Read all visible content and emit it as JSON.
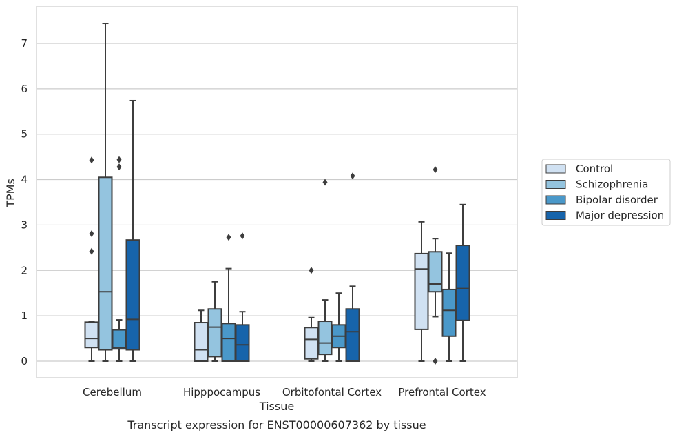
{
  "chart_data": {
    "type": "box",
    "title": "",
    "caption": "Transcript expression for ENST00000607362 by tissue",
    "xlabel": "Tissue",
    "ylabel": "TPMs",
    "ylim": [
      -0.35,
      7.8
    ],
    "yticks": [
      0,
      1,
      2,
      3,
      4,
      5,
      6,
      7
    ],
    "grid": "horizontal",
    "legend_position": "right",
    "categories": [
      "Cerebellum",
      "Hipppocampus",
      "Orbitofontal Cortex",
      "Prefrontal Cortex"
    ],
    "series": [
      {
        "name": "Control",
        "color": "#d0e1f2",
        "boxes": [
          {
            "min": 0.0,
            "q1": 0.3,
            "median": 0.5,
            "q3": 0.86,
            "max": 0.88,
            "outliers": [
              2.42,
              2.81,
              4.43
            ]
          },
          {
            "min": 0.0,
            "q1": 0.0,
            "median": 0.25,
            "q3": 0.85,
            "max": 1.12,
            "outliers": []
          },
          {
            "min": 0.0,
            "q1": 0.05,
            "median": 0.48,
            "q3": 0.74,
            "max": 0.96,
            "outliers": [
              2.0
            ]
          },
          {
            "min": 0.0,
            "q1": 0.7,
            "median": 2.03,
            "q3": 2.37,
            "max": 3.07,
            "outliers": []
          }
        ]
      },
      {
        "name": "Schizophrenia",
        "color": "#94c4df",
        "boxes": [
          {
            "min": 0.0,
            "q1": 0.25,
            "median": 1.53,
            "q3": 4.05,
            "max": 7.44,
            "outliers": []
          },
          {
            "min": 0.0,
            "q1": 0.1,
            "median": 0.75,
            "q3": 1.15,
            "max": 1.75,
            "outliers": []
          },
          {
            "min": 0.0,
            "q1": 0.15,
            "median": 0.4,
            "q3": 0.88,
            "max": 1.35,
            "outliers": [
              3.94
            ]
          },
          {
            "min": 0.98,
            "q1": 1.53,
            "median": 1.7,
            "q3": 2.41,
            "max": 2.7,
            "outliers": [
              0.0,
              4.22
            ]
          }
        ]
      },
      {
        "name": "Bipolar disorder",
        "color": "#4a98c9",
        "boxes": [
          {
            "min": 0.0,
            "q1": 0.27,
            "median": 0.3,
            "q3": 0.69,
            "max": 0.91,
            "outliers": [
              4.28,
              4.44
            ]
          },
          {
            "min": 0.0,
            "q1": 0.0,
            "median": 0.5,
            "q3": 0.83,
            "max": 2.04,
            "outliers": [
              2.73
            ]
          },
          {
            "min": 0.0,
            "q1": 0.3,
            "median": 0.55,
            "q3": 0.8,
            "max": 1.5,
            "outliers": []
          },
          {
            "min": 0.0,
            "q1": 0.55,
            "median": 1.12,
            "q3": 1.58,
            "max": 2.38,
            "outliers": []
          }
        ]
      },
      {
        "name": "Major depression",
        "color": "#1764ab",
        "boxes": [
          {
            "min": 0.0,
            "q1": 0.25,
            "median": 0.92,
            "q3": 2.67,
            "max": 5.74,
            "outliers": []
          },
          {
            "min": 0.0,
            "q1": 0.0,
            "median": 0.36,
            "q3": 0.8,
            "max": 1.09,
            "outliers": [
              2.76
            ]
          },
          {
            "min": 0.0,
            "q1": 0.0,
            "median": 0.65,
            "q3": 1.15,
            "max": 1.65,
            "outliers": [
              4.08
            ]
          },
          {
            "min": 0.0,
            "q1": 0.9,
            "median": 1.6,
            "q3": 2.55,
            "max": 3.45,
            "outliers": []
          }
        ]
      }
    ]
  }
}
